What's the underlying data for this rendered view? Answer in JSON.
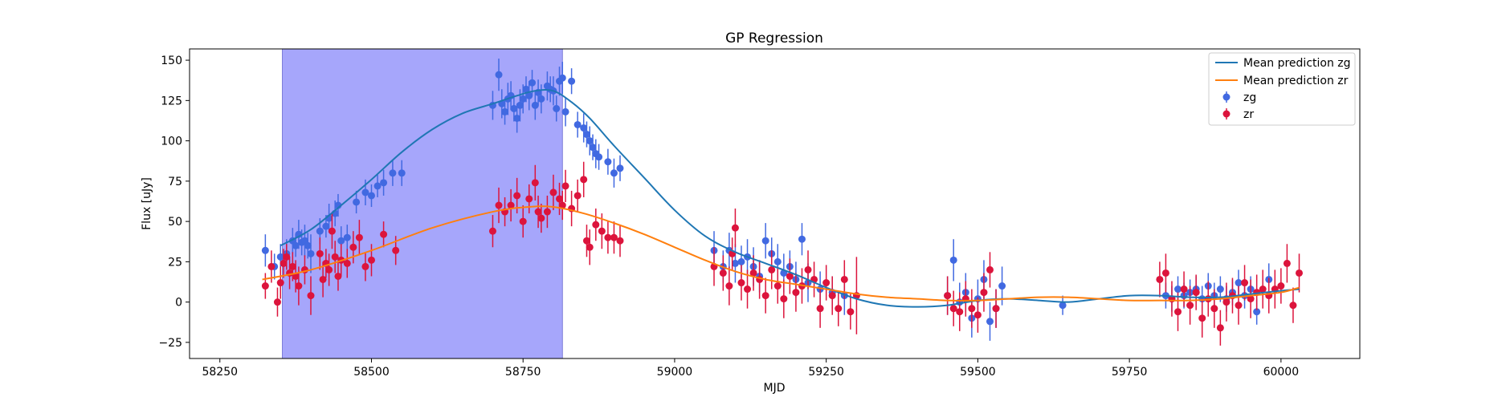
{
  "chart_data": {
    "type": "scatter",
    "title": "GP Regression",
    "xlabel": "MJD",
    "ylabel": "Flux [uJy]",
    "xlim": [
      58200,
      60130
    ],
    "ylim": [
      -35,
      157
    ],
    "xticks": [
      58250,
      58500,
      58750,
      59000,
      59250,
      59500,
      59750,
      60000
    ],
    "yticks": [
      -25,
      0,
      25,
      50,
      75,
      100,
      125,
      150
    ],
    "grid": false,
    "legend_position": "top-right",
    "shaded_region": {
      "x0": 58353,
      "x1": 58815,
      "color": "#a6a6fb"
    },
    "lines": [
      {
        "name": "Mean prediction zg",
        "color": "#1f77b4",
        "x": [
          58350,
          58400,
          58450,
          58500,
          58550,
          58600,
          58650,
          58700,
          58740,
          58770,
          58800,
          58830,
          58860,
          58900,
          58950,
          59000,
          59050,
          59100,
          59150,
          59200,
          59250,
          59300,
          59350,
          59400,
          59450,
          59500,
          59550,
          59600,
          59650,
          59700,
          59750,
          59800,
          59850,
          59900,
          59950,
          60000,
          60030
        ],
        "y": [
          35,
          45,
          60,
          76,
          93,
          107,
          117,
          123,
          128,
          131,
          131,
          124,
          114,
          97,
          77,
          57,
          41,
          31,
          24,
          17,
          9,
          2,
          -2,
          -3,
          -2,
          1,
          2,
          1,
          0,
          2,
          4,
          4,
          3,
          3,
          5,
          7,
          8
        ]
      },
      {
        "name": "Mean prediction zr",
        "color": "#ff7f0e",
        "x": [
          58320,
          58400,
          58500,
          58600,
          58700,
          58760,
          58800,
          58850,
          58900,
          58950,
          59000,
          59050,
          59100,
          59150,
          59200,
          59250,
          59300,
          59350,
          59400,
          59450,
          59500,
          59550,
          59600,
          59650,
          59700,
          59750,
          59800,
          59850,
          59900,
          59950,
          60000,
          60030
        ],
        "y": [
          14,
          20,
          32,
          46,
          56,
          59,
          59,
          55,
          49,
          42,
          34,
          26,
          19,
          14,
          11,
          8,
          5,
          3,
          2,
          1,
          1,
          2,
          3,
          3,
          2,
          1,
          1,
          1,
          2,
          4,
          6,
          9
        ]
      }
    ],
    "series": [
      {
        "name": "zg",
        "color": "#4169e1",
        "x": [
          58325,
          58340,
          58350,
          58360,
          58370,
          58375,
          58380,
          58385,
          58390,
          58395,
          58400,
          58415,
          58425,
          58430,
          58440,
          58445,
          58450,
          58460,
          58475,
          58490,
          58500,
          58510,
          58520,
          58535,
          58550,
          58700,
          58710,
          58715,
          58720,
          58725,
          58730,
          58735,
          58740,
          58745,
          58750,
          58755,
          58760,
          58765,
          58770,
          58775,
          58780,
          58790,
          58795,
          58800,
          58805,
          58810,
          58815,
          58820,
          58830,
          58840,
          58850,
          58855,
          58860,
          58865,
          58870,
          58875,
          58890,
          58900,
          58910,
          59065,
          59080,
          59090,
          59100,
          59110,
          59120,
          59130,
          59140,
          59150,
          59160,
          59170,
          59180,
          59190,
          59200,
          59210,
          59220,
          59240,
          59260,
          59280,
          59450,
          59460,
          59470,
          59480,
          59490,
          59500,
          59510,
          59520,
          59530,
          59540,
          59640,
          59810,
          59820,
          59830,
          59840,
          59850,
          59860,
          59870,
          59880,
          59890,
          59900,
          59910,
          59920,
          59930,
          59940,
          59950,
          59960,
          59980
        ],
        "y": [
          32,
          22,
          28,
          30,
          38,
          35,
          42,
          37,
          38,
          35,
          30,
          44,
          47,
          52,
          55,
          60,
          38,
          40,
          62,
          68,
          66,
          72,
          74,
          80,
          80,
          122,
          141,
          123,
          118,
          126,
          128,
          120,
          114,
          122,
          126,
          132,
          128,
          136,
          122,
          130,
          126,
          134,
          132,
          131,
          120,
          137,
          139,
          118,
          137,
          110,
          108,
          104,
          100,
          96,
          92,
          90,
          87,
          80,
          83,
          32,
          22,
          32,
          24,
          25,
          28,
          22,
          16,
          38,
          30,
          25,
          18,
          22,
          14,
          39,
          12,
          8,
          6,
          4,
          4,
          26,
          0,
          6,
          -10,
          2,
          14,
          -12,
          -4,
          10,
          -2,
          4,
          2,
          8,
          4,
          6,
          8,
          2,
          10,
          4,
          8,
          2,
          6,
          12,
          4,
          8,
          -6,
          14
        ],
        "err": [
          10,
          8,
          8,
          9,
          8,
          7,
          9,
          8,
          10,
          8,
          12,
          8,
          7,
          9,
          8,
          7,
          9,
          8,
          7,
          8,
          7,
          7,
          8,
          8,
          8,
          9,
          10,
          9,
          8,
          10,
          9,
          8,
          9,
          10,
          9,
          8,
          9,
          8,
          9,
          8,
          9,
          9,
          8,
          9,
          8,
          9,
          10,
          9,
          8,
          8,
          9,
          8,
          9,
          8,
          9,
          8,
          8,
          9,
          8,
          12,
          10,
          11,
          12,
          10,
          11,
          12,
          10,
          11,
          10,
          11,
          12,
          10,
          11,
          10,
          12,
          11,
          10,
          12,
          12,
          13,
          12,
          12,
          12,
          12,
          12,
          12,
          12,
          12,
          6,
          8,
          8,
          8,
          8,
          8,
          8,
          8,
          8,
          8,
          8,
          8,
          8,
          8,
          8,
          8,
          8,
          10
        ]
      },
      {
        "name": "zr",
        "color": "#dc143c",
        "x": [
          58325,
          58335,
          58345,
          58350,
          58355,
          58360,
          58365,
          58370,
          58375,
          58380,
          58390,
          58400,
          58415,
          58420,
          58425,
          58430,
          58435,
          58440,
          58445,
          58450,
          58460,
          58470,
          58480,
          58490,
          58500,
          58520,
          58540,
          58700,
          58710,
          58720,
          58730,
          58740,
          58750,
          58760,
          58770,
          58775,
          58780,
          58790,
          58800,
          58810,
          58815,
          58820,
          58830,
          58840,
          58850,
          58855,
          58860,
          58870,
          58880,
          58890,
          58900,
          58910,
          59065,
          59080,
          59090,
          59095,
          59100,
          59110,
          59120,
          59130,
          59140,
          59150,
          59160,
          59170,
          59180,
          59190,
          59200,
          59210,
          59220,
          59230,
          59240,
          59250,
          59260,
          59270,
          59280,
          59290,
          59300,
          59450,
          59460,
          59470,
          59480,
          59490,
          59500,
          59510,
          59520,
          59530,
          59800,
          59810,
          59820,
          59830,
          59840,
          59850,
          59860,
          59870,
          59880,
          59890,
          59900,
          59910,
          59920,
          59930,
          59940,
          59950,
          59960,
          59970,
          59980,
          59990,
          60000,
          60010,
          60020,
          60030
        ],
        "y": [
          10,
          22,
          0,
          12,
          24,
          28,
          18,
          22,
          16,
          10,
          20,
          4,
          30,
          14,
          24,
          20,
          44,
          28,
          16,
          26,
          24,
          34,
          40,
          22,
          26,
          42,
          32,
          44,
          60,
          56,
          60,
          66,
          50,
          64,
          74,
          56,
          52,
          56,
          68,
          64,
          60,
          72,
          58,
          66,
          76,
          38,
          34,
          48,
          44,
          40,
          40,
          38,
          22,
          18,
          10,
          30,
          46,
          12,
          8,
          18,
          14,
          4,
          20,
          10,
          2,
          16,
          6,
          10,
          20,
          14,
          -4,
          12,
          4,
          -4,
          14,
          -6,
          4,
          4,
          -4,
          -6,
          2,
          -4,
          -8,
          6,
          20,
          -4,
          14,
          18,
          2,
          -6,
          8,
          -2,
          6,
          -10,
          2,
          -4,
          -16,
          0,
          4,
          -2,
          12,
          2,
          6,
          8,
          4,
          8,
          10,
          24,
          -2,
          18
        ],
        "err": [
          8,
          10,
          9,
          10,
          9,
          8,
          10,
          9,
          10,
          12,
          9,
          12,
          10,
          11,
          9,
          10,
          11,
          10,
          9,
          10,
          9,
          10,
          11,
          9,
          10,
          8,
          9,
          10,
          11,
          9,
          10,
          11,
          10,
          9,
          11,
          10,
          9,
          10,
          11,
          10,
          9,
          10,
          11,
          10,
          11,
          10,
          11,
          10,
          11,
          10,
          10,
          10,
          12,
          11,
          12,
          10,
          12,
          11,
          12,
          11,
          12,
          11,
          12,
          11,
          12,
          11,
          12,
          11,
          12,
          11,
          12,
          11,
          12,
          11,
          12,
          11,
          24,
          12,
          11,
          12,
          11,
          12,
          11,
          12,
          11,
          12,
          11,
          12,
          11,
          12,
          11,
          12,
          11,
          12,
          11,
          12,
          11,
          12,
          11,
          12,
          11,
          12,
          11,
          12,
          11,
          12,
          11,
          12,
          11,
          12
        ]
      }
    ]
  }
}
